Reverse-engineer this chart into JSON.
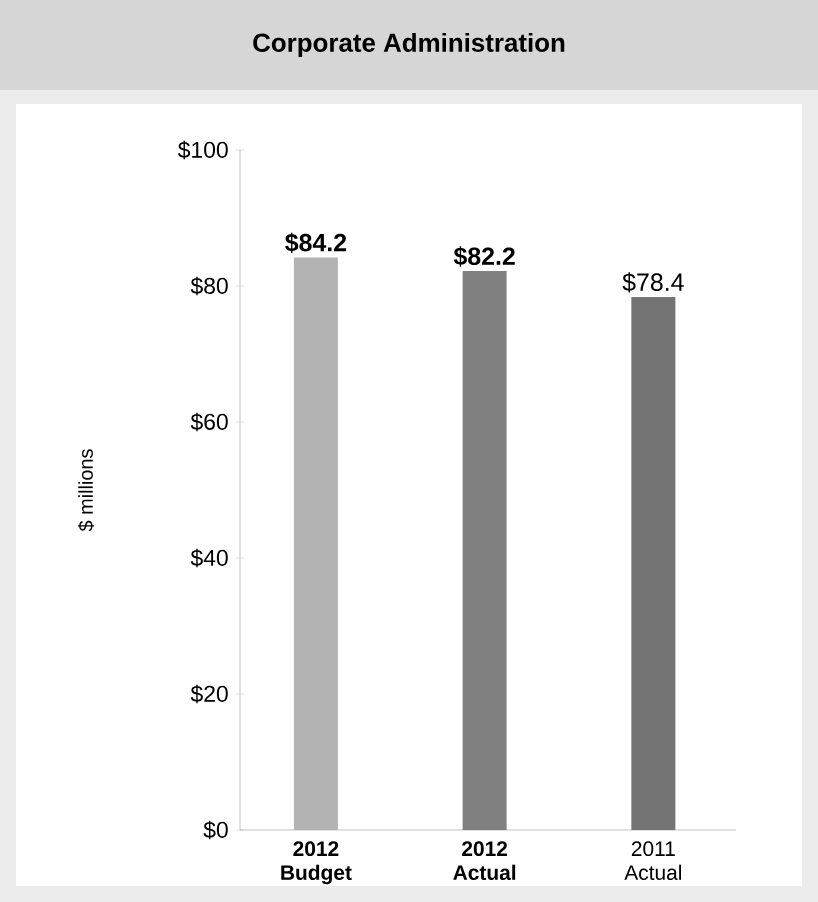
{
  "chart_data": {
    "type": "bar",
    "title": "Corporate Administration",
    "ylabel": "$ millions",
    "categories": [
      "**2012 Budget**",
      "**2012 Actual**",
      "2011 Actual"
    ],
    "values": [
      84.2,
      82.2,
      78.4
    ],
    "colors": [
      "#b3b3b3",
      "#808080",
      "#737373"
    ],
    "value_labels": [
      "**$84.2**",
      "**$82.2**",
      "$78.4"
    ],
    "ylim": [
      0,
      100
    ],
    "yticks": [
      {
        "value": 0,
        "label": "$0"
      },
      {
        "value": 20,
        "label": "$20"
      },
      {
        "value": 40,
        "label": "$40"
      },
      {
        "value": 60,
        "label": "$60"
      },
      {
        "value": 80,
        "label": "$80"
      },
      {
        "value": 100,
        "label": "$100"
      }
    ],
    "grid": false
  }
}
